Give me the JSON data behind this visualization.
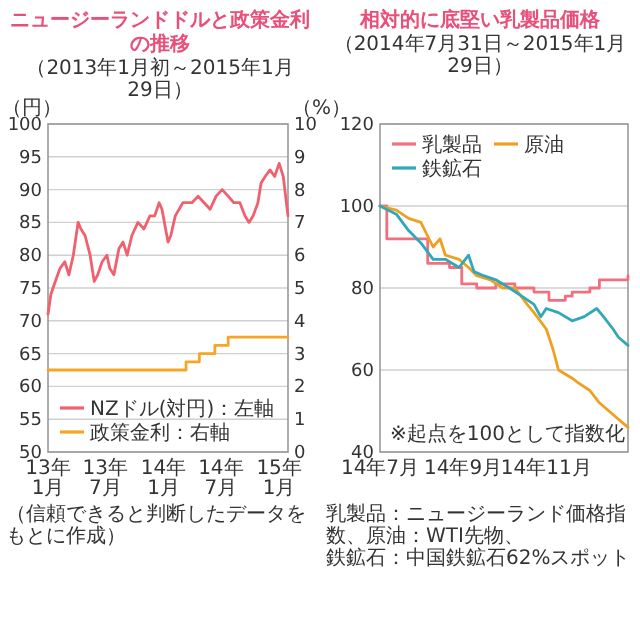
{
  "chart_data": [
    {
      "type": "line",
      "title": "ニュージーランドドルと政策金利の推移",
      "subtitle": "（2013年1月初～2015年1月29日）",
      "ylabel": "（円）",
      "y2label": "（%）",
      "annotations": [
        "（信頼できると判断したデータをもとに作成）"
      ],
      "xlim": [
        "2013-01-01",
        "2015-01-29"
      ],
      "xticks": [
        {
          "value": "2013-01-01",
          "label": "13年1月"
        },
        {
          "value": "2013-07-01",
          "label": "13年7月"
        },
        {
          "value": "2014-01-01",
          "label": "14年1月"
        },
        {
          "value": "2014-07-01",
          "label": "14年7月"
        },
        {
          "value": "2015-01-01",
          "label": "15年1月"
        }
      ],
      "ylim": [
        50,
        100
      ],
      "yticks": [
        50,
        55,
        60,
        65,
        70,
        75,
        80,
        85,
        90,
        95,
        100
      ],
      "y2lim": [
        0,
        10
      ],
      "y2ticks": [
        0,
        1,
        2,
        3,
        4,
        5,
        6,
        7,
        8,
        9,
        10
      ],
      "grid": "y",
      "legend": "bottom",
      "series": [
        {
          "name": "NZドル(対円)：左軸",
          "color": "#f0606e",
          "x": [
            "2013-01-01",
            "2013-01-10",
            "2013-01-24",
            "2013-02-08",
            "2013-02-23",
            "2013-03-08",
            "2013-03-22",
            "2013-04-06",
            "2013-04-15",
            "2013-04-28",
            "2013-05-14",
            "2013-05-27",
            "2013-06-07",
            "2013-06-21",
            "2013-07-06",
            "2013-07-15",
            "2013-07-28",
            "2013-08-13",
            "2013-08-26",
            "2013-09-08",
            "2013-09-23",
            "2013-10-12",
            "2013-10-31",
            "2013-11-19",
            "2013-12-04",
            "2013-12-18",
            "2013-12-27",
            "2014-01-15",
            "2014-01-24",
            "2014-02-07",
            "2014-03-03",
            "2014-04-01",
            "2014-04-20",
            "2014-05-09",
            "2014-05-28",
            "2014-06-16",
            "2014-07-05",
            "2014-07-24",
            "2014-08-11",
            "2014-08-30",
            "2014-09-15",
            "2014-09-28",
            "2014-10-11",
            "2014-10-26",
            "2014-11-05",
            "2014-11-18",
            "2014-12-03",
            "2014-12-18",
            "2015-01-01",
            "2015-01-14",
            "2015-01-29"
          ],
          "values": [
            71,
            74,
            76,
            78,
            79,
            77,
            80,
            85,
            84,
            83,
            80,
            76,
            77,
            79,
            80,
            78,
            77,
            81,
            82,
            80,
            83,
            85,
            84,
            86,
            86,
            88,
            87,
            82,
            83,
            86,
            88,
            88,
            89,
            88,
            87,
            89,
            90,
            89,
            88,
            88,
            86,
            85,
            86,
            88,
            91,
            92,
            93,
            92,
            94,
            92,
            86
          ]
        },
        {
          "name": "政策金利：右軸",
          "type": "step",
          "axis": "y2",
          "color": "#f5a623",
          "x": [
            "2013-01-01",
            "2014-03-13",
            "2014-04-24",
            "2014-06-12",
            "2014-07-24",
            "2015-01-29"
          ],
          "values": [
            2.5,
            2.75,
            3.0,
            3.25,
            3.5,
            3.5
          ]
        }
      ]
    },
    {
      "type": "line",
      "title": "相対的に底堅い乳製品価格",
      "subtitle": "（2014年7月31日～2015年1月29日）",
      "annotations": [
        "※起点を100として指数化",
        "乳製品：ニュージーランド価格指数、原油：WTI先物、",
        "鉄鉱石：中国鉄鉱石62%スポット"
      ],
      "xlim": [
        "2014-07-31",
        "2015-01-29"
      ],
      "xticks": [
        {
          "value": "2014-07-31",
          "label": "14年7月"
        },
        {
          "value": "2014-09-30",
          "label": "14年9月"
        },
        {
          "value": "2014-11-30",
          "label": "14年11月"
        }
      ],
      "ylim": [
        40,
        120
      ],
      "yticks": [
        40,
        60,
        80,
        100,
        120
      ],
      "grid": "y",
      "legend": "top",
      "series": [
        {
          "name": "乳製品",
          "type": "step",
          "color": "#f07080",
          "x": [
            "2014-07-31",
            "2014-08-05",
            "2014-09-04",
            "2014-09-20",
            "2014-09-29",
            "2014-10-10",
            "2014-10-24",
            "2014-11-07",
            "2014-11-21",
            "2014-12-02",
            "2014-12-14",
            "2014-12-19",
            "2015-01-01",
            "2015-01-08",
            "2015-01-29"
          ],
          "values": [
            100,
            92,
            86,
            85,
            81,
            80,
            81,
            80,
            79,
            77,
            78,
            79,
            80,
            82,
            83
          ]
        },
        {
          "name": "原油",
          "color": "#f0a020",
          "x": [
            "2014-07-31",
            "2014-08-12",
            "2014-08-21",
            "2014-08-30",
            "2014-09-08",
            "2014-09-13",
            "2014-09-17",
            "2014-09-27",
            "2014-10-04",
            "2014-10-10",
            "2014-10-20",
            "2014-10-29",
            "2014-11-07",
            "2014-11-16",
            "2014-11-21",
            "2014-11-30",
            "2014-12-05",
            "2014-12-09",
            "2014-12-19",
            "2014-12-23",
            "2015-01-01",
            "2015-01-08",
            "2015-01-15",
            "2015-01-22",
            "2015-01-29"
          ],
          "values": [
            100,
            99,
            97,
            96,
            90,
            92,
            88,
            87,
            85,
            83,
            82,
            80,
            80,
            76,
            74,
            70,
            65,
            60,
            58,
            57,
            55,
            52,
            50,
            48,
            46
          ]
        },
        {
          "name": "鉄鉱石",
          "color": "#30a8b8",
          "x": [
            "2014-07-31",
            "2014-08-12",
            "2014-08-21",
            "2014-08-30",
            "2014-09-08",
            "2014-09-17",
            "2014-09-27",
            "2014-10-04",
            "2014-10-08",
            "2014-10-15",
            "2014-10-24",
            "2014-11-03",
            "2014-11-12",
            "2014-11-21",
            "2014-11-26",
            "2014-11-30",
            "2014-12-09",
            "2014-12-19",
            "2014-12-28",
            "2015-01-06",
            "2015-01-11",
            "2015-01-18",
            "2015-01-22",
            "2015-01-29"
          ],
          "values": [
            100,
            98,
            94,
            91,
            87,
            87,
            85,
            88,
            84,
            83,
            82,
            80,
            78,
            76,
            73,
            75,
            74,
            72,
            73,
            75,
            73,
            70,
            68,
            66
          ]
        }
      ]
    }
  ]
}
